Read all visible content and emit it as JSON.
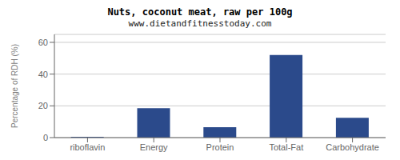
{
  "chart_data": {
    "type": "bar",
    "title": "Nuts, coconut meat, raw per 100g",
    "subtitle": "www.dietandfitnesstoday.com",
    "categories": [
      "riboflavin",
      "Energy",
      "Protein",
      "Total-Fat",
      "Carbohydrate"
    ],
    "values": [
      0.5,
      18.5,
      6.5,
      52.0,
      12.5
    ],
    "color": "#2b4a8b",
    "ylabel": "Percentage of RDH (%)",
    "ylim": [
      0,
      65
    ],
    "yticks": [
      0,
      20,
      40,
      60
    ],
    "grid": true
  }
}
